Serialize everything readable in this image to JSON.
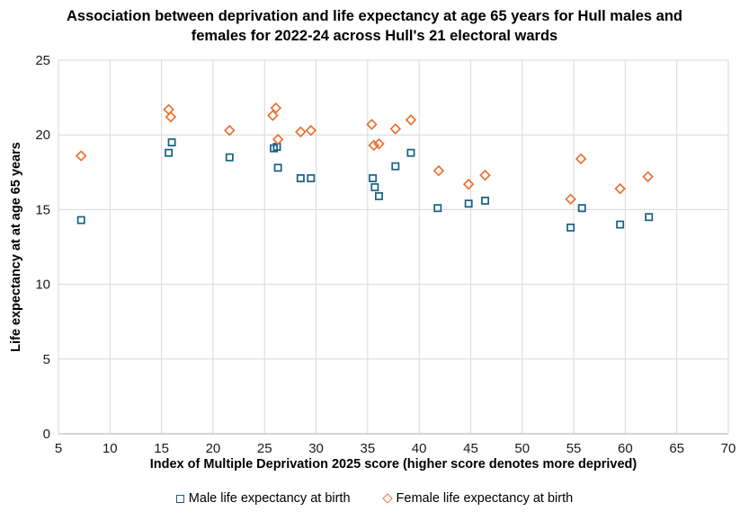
{
  "chart_data": {
    "type": "scatter",
    "title": "Association between deprivation and life expectancy at age 65 years for Hull males and females for 2022-24 across Hull's 21 electoral wards",
    "xlabel": "Index of Multiple Deprivation 2025 score (higher score denotes more deprived)",
    "ylabel": "Life expectancy at at age 65 years",
    "xlim": [
      5,
      70
    ],
    "ylim": [
      0,
      25
    ],
    "x_ticks": [
      5,
      10,
      15,
      20,
      25,
      30,
      35,
      40,
      45,
      50,
      55,
      60,
      65,
      70
    ],
    "y_ticks": [
      0,
      5,
      10,
      15,
      20,
      25
    ],
    "grid": true,
    "gridline_color": "#d9d9d9",
    "axis_line_color": "#bfbfbf",
    "legend_position": "bottom",
    "series": [
      {
        "name": "Male life expectancy at birth",
        "marker": "square",
        "color": "#156082",
        "points": [
          [
            7.2,
            14.3
          ],
          [
            15.7,
            18.8
          ],
          [
            16.0,
            19.5
          ],
          [
            21.6,
            18.5
          ],
          [
            25.9,
            19.1
          ],
          [
            26.2,
            19.2
          ],
          [
            26.3,
            17.8
          ],
          [
            28.5,
            17.1
          ],
          [
            29.5,
            17.1
          ],
          [
            35.5,
            17.1
          ],
          [
            35.7,
            16.5
          ],
          [
            36.1,
            15.9
          ],
          [
            37.7,
            17.9
          ],
          [
            39.2,
            18.8
          ],
          [
            41.8,
            15.1
          ],
          [
            44.8,
            15.4
          ],
          [
            46.4,
            15.6
          ],
          [
            54.7,
            13.8
          ],
          [
            55.8,
            15.1
          ],
          [
            59.5,
            14.0
          ],
          [
            62.3,
            14.5
          ]
        ]
      },
      {
        "name": "Female life expectancy at birth",
        "marker": "diamond",
        "color": "#e97132",
        "points": [
          [
            7.2,
            18.6
          ],
          [
            15.7,
            21.7
          ],
          [
            15.9,
            21.2
          ],
          [
            21.6,
            20.3
          ],
          [
            25.8,
            21.3
          ],
          [
            26.1,
            21.8
          ],
          [
            26.3,
            19.7
          ],
          [
            28.5,
            20.2
          ],
          [
            29.5,
            20.3
          ],
          [
            35.4,
            20.7
          ],
          [
            35.6,
            19.3
          ],
          [
            36.1,
            19.4
          ],
          [
            37.7,
            20.4
          ],
          [
            39.2,
            21.0
          ],
          [
            41.9,
            17.6
          ],
          [
            44.8,
            16.7
          ],
          [
            46.4,
            17.3
          ],
          [
            54.7,
            15.7
          ],
          [
            55.7,
            18.4
          ],
          [
            59.5,
            16.4
          ],
          [
            62.2,
            17.2
          ]
        ]
      }
    ]
  }
}
